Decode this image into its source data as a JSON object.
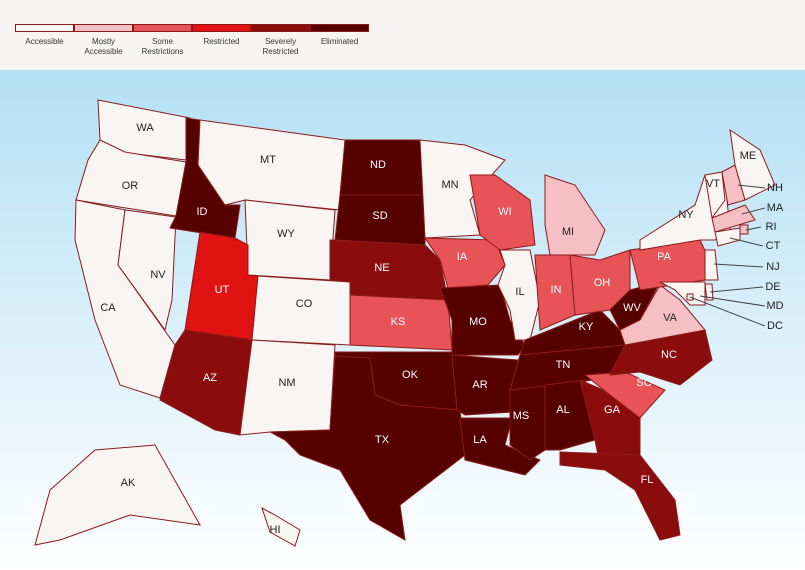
{
  "legend": [
    {
      "label": "Accessible",
      "color": "#f8f5f3"
    },
    {
      "label": "Mostly Accessible",
      "color": "#f6bfc3"
    },
    {
      "label": "Some Restrictions",
      "color": "#e85357"
    },
    {
      "label": "Restricted",
      "color": "#e01212"
    },
    {
      "label": "Severely Restricted",
      "color": "#8b0c0c"
    },
    {
      "label": "Eliminated",
      "color": "#560000"
    }
  ],
  "states": [
    {
      "label": "WA",
      "category": "Accessible"
    },
    {
      "label": "OR",
      "category": "Accessible"
    },
    {
      "label": "CA",
      "category": "Accessible"
    },
    {
      "label": "NV",
      "category": "Accessible"
    },
    {
      "label": "ID",
      "category": "Eliminated"
    },
    {
      "label": "MT",
      "category": "Accessible"
    },
    {
      "label": "WY",
      "category": "Accessible"
    },
    {
      "label": "UT",
      "category": "Restricted"
    },
    {
      "label": "CO",
      "category": "Accessible"
    },
    {
      "label": "AZ",
      "category": "Severely Restricted"
    },
    {
      "label": "NM",
      "category": "Accessible"
    },
    {
      "label": "ND",
      "category": "Eliminated"
    },
    {
      "label": "SD",
      "category": "Eliminated"
    },
    {
      "label": "NE",
      "category": "Severely Restricted"
    },
    {
      "label": "KS",
      "category": "Some Restrictions"
    },
    {
      "label": "OK",
      "category": "Eliminated"
    },
    {
      "label": "TX",
      "category": "Eliminated"
    },
    {
      "label": "MN",
      "category": "Accessible"
    },
    {
      "label": "IA",
      "category": "Some Restrictions"
    },
    {
      "label": "MO",
      "category": "Eliminated"
    },
    {
      "label": "AR",
      "category": "Eliminated"
    },
    {
      "label": "LA",
      "category": "Eliminated"
    },
    {
      "label": "WI",
      "category": "Some Restrictions"
    },
    {
      "label": "IL",
      "category": "Accessible"
    },
    {
      "label": "MS",
      "category": "Eliminated"
    },
    {
      "label": "MI",
      "category": "Mostly Accessible"
    },
    {
      "label": "IN",
      "category": "Some Restrictions"
    },
    {
      "label": "KY",
      "category": "Eliminated"
    },
    {
      "label": "TN",
      "category": "Eliminated"
    },
    {
      "label": "AL",
      "category": "Eliminated"
    },
    {
      "label": "OH",
      "category": "Some Restrictions"
    },
    {
      "label": "WV",
      "category": "Eliminated"
    },
    {
      "label": "GA",
      "category": "Severely Restricted"
    },
    {
      "label": "FL",
      "category": "Severely Restricted"
    },
    {
      "label": "SC",
      "category": "Some Restrictions"
    },
    {
      "label": "NC",
      "category": "Severely Restricted"
    },
    {
      "label": "VA",
      "category": "Mostly Accessible"
    },
    {
      "label": "PA",
      "category": "Some Restrictions"
    },
    {
      "label": "NY",
      "category": "Accessible"
    },
    {
      "label": "VT",
      "category": "Accessible"
    },
    {
      "label": "NH",
      "category": "Mostly Accessible"
    },
    {
      "label": "ME",
      "category": "Accessible"
    },
    {
      "label": "MA",
      "category": "Mostly Accessible"
    },
    {
      "label": "RI",
      "category": "Mostly Accessible"
    },
    {
      "label": "CT",
      "category": "Accessible"
    },
    {
      "label": "NJ",
      "category": "Accessible"
    },
    {
      "label": "DE",
      "category": "Accessible"
    },
    {
      "label": "MD",
      "category": "Accessible"
    },
    {
      "label": "DC",
      "category": "Accessible"
    },
    {
      "label": "AK",
      "category": "Accessible"
    },
    {
      "label": "HI",
      "category": "Accessible"
    }
  ]
}
